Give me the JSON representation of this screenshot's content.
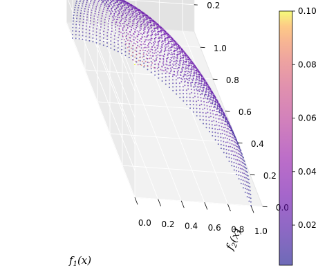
{
  "chart_data": {
    "type": "scatter",
    "projection": "3d",
    "xlabel": "f_1(x)",
    "ylabel": "f_2(x)",
    "zlabel": "",
    "xlim": [
      0,
      1.1
    ],
    "ylim": [
      0,
      1.1
    ],
    "zlim": [
      0,
      1.1
    ],
    "x_ticks": [
      "0.0",
      "0.2",
      "0.4",
      "0.6",
      "0.8",
      "1.0"
    ],
    "y_ticks": [
      "0.0",
      "0.2",
      "0.4",
      "0.6",
      "0.8",
      "1.0"
    ],
    "z_ticks": [
      "0.2",
      "0.4",
      "0.6",
      "0.8",
      "1.0"
    ],
    "surface": "f1^2 + f2^2 + f3^2 = 1, f1,f2,f3 >= 0",
    "series": [
      {
        "values": "approx. 4000 points on the spherical octant, colored by value"
      }
    ],
    "colorbar": {
      "cmap": "plasma",
      "min": 0.005,
      "max": 0.1,
      "ticks": [
        "0.02",
        "0.04",
        "0.06",
        "0.08",
        "0.10"
      ],
      "tick_values": [
        0.02,
        0.04,
        0.06,
        0.08,
        0.1
      ]
    },
    "grid": true
  }
}
